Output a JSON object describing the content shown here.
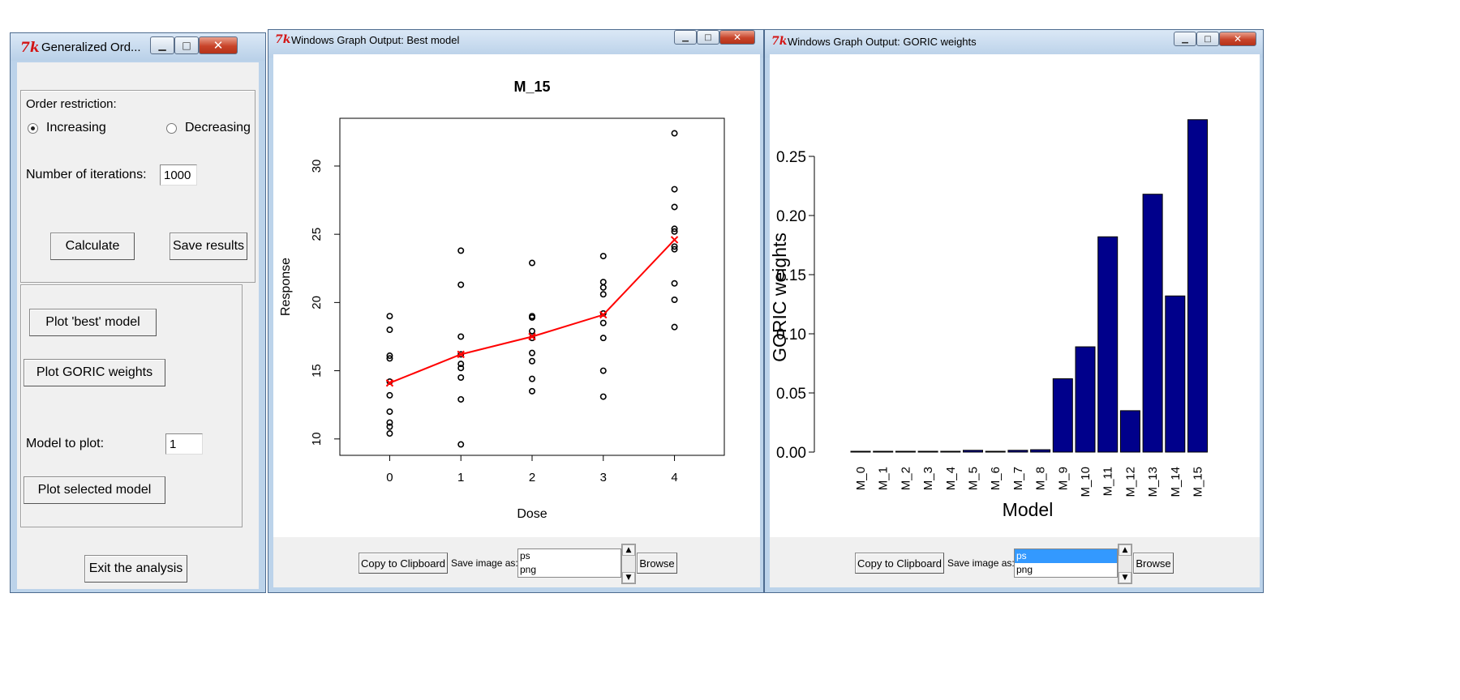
{
  "main_window": {
    "title": "Generalized Ord...",
    "order_label": "Order restriction:",
    "increasing_label": "Increasing",
    "decreasing_label": "Decreasing",
    "iterations_label": "Number of iterations:",
    "iterations_value": "1000",
    "calculate_label": "Calculate",
    "save_results_label": "Save results",
    "plot_best_label": "Plot 'best' model",
    "plot_goric_label": "Plot GORIC weights",
    "model_to_plot_label": "Model to plot:",
    "model_to_plot_value": "1",
    "plot_selected_label": "Plot selected model",
    "exit_label": "Exit the analysis"
  },
  "graph_best": {
    "title": "Windows Graph Output: Best model",
    "copy_label": "Copy to Clipboard",
    "save_as_label": "Save image as:",
    "formats": [
      "ps",
      "png"
    ],
    "browse_label": "Browse"
  },
  "graph_goric": {
    "title": "Windows Graph Output: GORIC weights",
    "copy_label": "Copy to Clipboard",
    "save_as_label": "Save image as:",
    "formats": [
      "ps",
      "png"
    ],
    "browse_label": "Browse"
  },
  "colors": {
    "fit_line": "#ff0000",
    "bar_fill": "#00008b",
    "list_selection": "#3399ff",
    "close_button": "#c8442a"
  },
  "chart_data": [
    {
      "type": "scatter",
      "title": "M_15",
      "xlabel": "Dose",
      "ylabel": "Response",
      "xlim": [
        -0.7,
        4.7
      ],
      "ylim": [
        8.8,
        33.5
      ],
      "x_ticks": [
        0,
        1,
        2,
        3,
        4
      ],
      "y_ticks": [
        10,
        15,
        20,
        25,
        30
      ],
      "points": [
        {
          "x": 0,
          "y": 19.0
        },
        {
          "x": 0,
          "y": 18.0
        },
        {
          "x": 0,
          "y": 16.1
        },
        {
          "x": 0,
          "y": 15.9
        },
        {
          "x": 0,
          "y": 14.2
        },
        {
          "x": 0,
          "y": 13.2
        },
        {
          "x": 0,
          "y": 12.0
        },
        {
          "x": 0,
          "y": 11.2
        },
        {
          "x": 0,
          "y": 10.9
        },
        {
          "x": 0,
          "y": 10.4
        },
        {
          "x": 1,
          "y": 23.8
        },
        {
          "x": 1,
          "y": 21.3
        },
        {
          "x": 1,
          "y": 17.5
        },
        {
          "x": 1,
          "y": 16.2
        },
        {
          "x": 1,
          "y": 15.5
        },
        {
          "x": 1,
          "y": 15.2
        },
        {
          "x": 1,
          "y": 14.5
        },
        {
          "x": 1,
          "y": 12.9
        },
        {
          "x": 1,
          "y": 9.6
        },
        {
          "x": 2,
          "y": 22.9
        },
        {
          "x": 2,
          "y": 19.0
        },
        {
          "x": 2,
          "y": 18.9
        },
        {
          "x": 2,
          "y": 17.9
        },
        {
          "x": 2,
          "y": 17.4
        },
        {
          "x": 2,
          "y": 16.3
        },
        {
          "x": 2,
          "y": 15.7
        },
        {
          "x": 2,
          "y": 14.4
        },
        {
          "x": 2,
          "y": 13.5
        },
        {
          "x": 3,
          "y": 23.4
        },
        {
          "x": 3,
          "y": 21.5
        },
        {
          "x": 3,
          "y": 21.1
        },
        {
          "x": 3,
          "y": 20.6
        },
        {
          "x": 3,
          "y": 19.2
        },
        {
          "x": 3,
          "y": 18.5
        },
        {
          "x": 3,
          "y": 17.4
        },
        {
          "x": 3,
          "y": 15.0
        },
        {
          "x": 3,
          "y": 13.1
        },
        {
          "x": 4,
          "y": 32.4
        },
        {
          "x": 4,
          "y": 28.3
        },
        {
          "x": 4,
          "y": 27.0
        },
        {
          "x": 4,
          "y": 25.4
        },
        {
          "x": 4,
          "y": 25.2
        },
        {
          "x": 4,
          "y": 24.1
        },
        {
          "x": 4,
          "y": 23.9
        },
        {
          "x": 4,
          "y": 21.4
        },
        {
          "x": 4,
          "y": 20.2
        },
        {
          "x": 4,
          "y": 18.2
        }
      ],
      "fit": {
        "x": [
          0,
          1,
          2,
          3,
          4
        ],
        "y": [
          14.1,
          16.2,
          17.5,
          19.1,
          24.6
        ]
      }
    },
    {
      "type": "bar",
      "title": "",
      "xlabel": "Model",
      "ylabel": "GORIC weights",
      "ylim": [
        0,
        0.28
      ],
      "y_ticks": [
        "0.00",
        "0.05",
        "0.10",
        "0.15",
        "0.20",
        "0.25"
      ],
      "categories": [
        "M_0",
        "M_1",
        "M_2",
        "M_3",
        "M_4",
        "M_5",
        "M_6",
        "M_7",
        "M_8",
        "M_9",
        "M_10",
        "M_11",
        "M_12",
        "M_13",
        "M_14",
        "M_15"
      ],
      "values": [
        0.0,
        0.0,
        0.0,
        0.0,
        0.0,
        0.0015,
        0.0,
        0.0015,
        0.002,
        0.062,
        0.089,
        0.182,
        0.035,
        0.218,
        0.132,
        0.281
      ]
    }
  ]
}
